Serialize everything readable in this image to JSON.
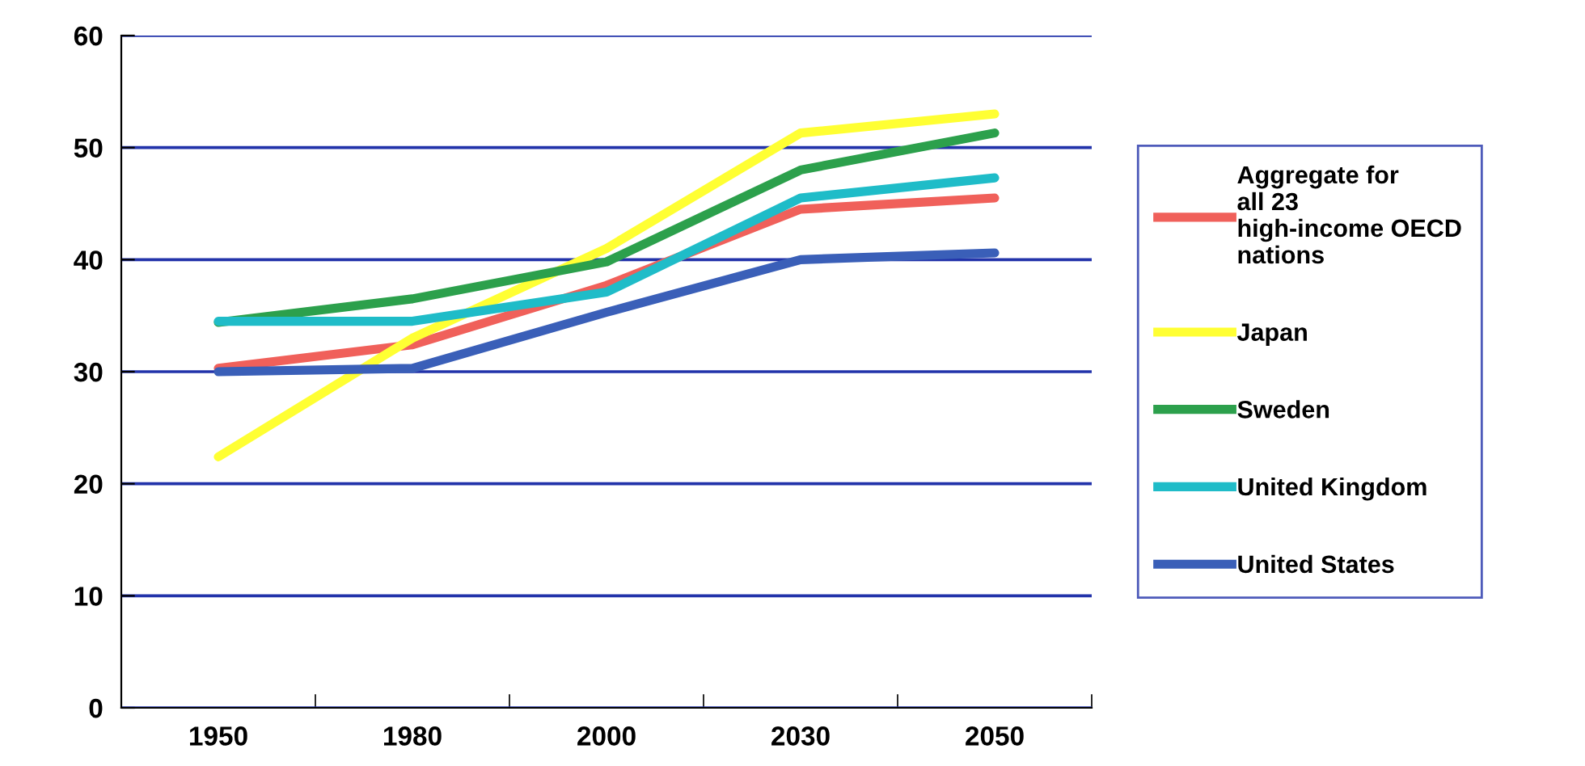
{
  "chart_data": {
    "type": "line",
    "categories": [
      "1950",
      "1980",
      "2000",
      "2030",
      "2050"
    ],
    "series": [
      {
        "name": "Aggregate for all 23 high-income OECD nations",
        "color": "#f0605a",
        "values": [
          30.3,
          32.4,
          37.7,
          44.5,
          45.5
        ]
      },
      {
        "name": "Japan",
        "color": "#ffff33",
        "values": [
          22.4,
          33,
          41,
          51.3,
          53
        ]
      },
      {
        "name": "Sweden",
        "color": "#2ca04c",
        "values": [
          34.4,
          36.5,
          39.8,
          48,
          51.3
        ]
      },
      {
        "name": "United Kingdom",
        "color": "#1fbcc8",
        "values": [
          34.5,
          34.5,
          37.1,
          45.5,
          47.3
        ]
      },
      {
        "name": "United States",
        "color": "#3a5fb8",
        "values": [
          30,
          30.3,
          35.3,
          40,
          40.6
        ]
      }
    ],
    "ylim": [
      0,
      60
    ],
    "yticks": [
      0,
      10,
      20,
      30,
      40,
      50,
      60
    ],
    "grid": "y",
    "legend": "right",
    "marker": "none",
    "line_style": "solid"
  }
}
